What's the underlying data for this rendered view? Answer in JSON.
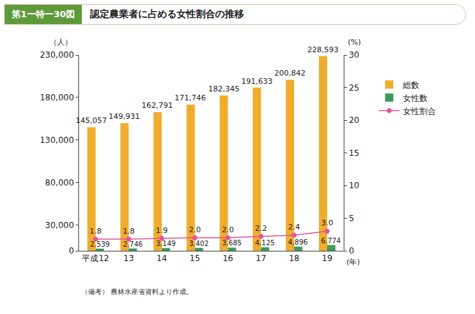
{
  "chart_data": {
    "type": "bar",
    "figure_label": "第1ー特ー30図",
    "title": "認定農業者に占める女性割合の推移",
    "note": "（備考） 農林水産省資料より作成。",
    "y_label": "（人）",
    "y2_label": "(%)",
    "x_label": "(年)",
    "categories": [
      "平成12",
      "13",
      "14",
      "15",
      "16",
      "17",
      "18",
      "19"
    ],
    "series": [
      {
        "name": "総数",
        "type": "bar",
        "color": "#f0ac2c",
        "values": [
          145057,
          149931,
          162791,
          171746,
          182345,
          191633,
          200842,
          228593
        ],
        "value_labels": [
          "145,057",
          "149,931",
          "162,791",
          "171,746",
          "182,345",
          "191,633",
          "200,842",
          "228,593"
        ]
      },
      {
        "name": "女性数",
        "type": "bar",
        "color": "#3d9b5b",
        "values": [
          2539,
          2746,
          3149,
          3402,
          3685,
          4125,
          4896,
          6774
        ],
        "value_labels": [
          "2,539",
          "2,746",
          "3,149",
          "3,402",
          "3,685",
          "4,125",
          "4,896",
          "6,774"
        ]
      },
      {
        "name": "女性割合",
        "type": "line",
        "axis": "y2",
        "color": "#e0559a",
        "marker": "circle",
        "values": [
          1.8,
          1.8,
          1.9,
          2.0,
          2.0,
          2.2,
          2.4,
          3.0
        ],
        "value_labels": [
          "1.8",
          "1.8",
          "1.9",
          "2.0",
          "2.0",
          "2.2",
          "2.4",
          "3.0"
        ]
      }
    ],
    "ylim": [
      0,
      230000
    ],
    "yticks": [
      0,
      {
        "value": 30000,
        "label": "30,000"
      },
      {
        "value": 80000,
        "label": "80,000"
      },
      {
        "value": 130000,
        "label": "130,000"
      },
      {
        "value": 180000,
        "label": "180,000"
      },
      {
        "value": 230000,
        "label": "230,000"
      }
    ],
    "y2lim": [
      0,
      30
    ],
    "y2ticks": [
      0,
      5,
      10,
      15,
      20,
      25,
      30
    ],
    "grid": false,
    "legend": "right",
    "data_labels": true
  }
}
